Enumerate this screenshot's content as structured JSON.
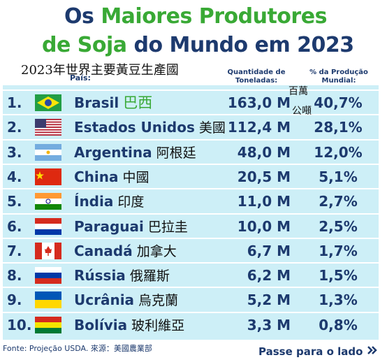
{
  "header": {
    "title_line1": [
      "Os",
      "Maiores Produtores"
    ],
    "title_line2": [
      "de Soja",
      "do Mundo em 2023"
    ],
    "subtitle_zh": "2023年世界主要黃豆生產國"
  },
  "table": {
    "columns": [
      "País:",
      "Quantidade de Toneladas:",
      "% da Produção Mundial:"
    ],
    "unit_zh": [
      "百萬",
      "公噸"
    ],
    "rows": [
      [
        "1.",
        "Brasil",
        "巴西",
        "163,0 M",
        "40,7%"
      ],
      [
        "2.",
        "Estados Unidos",
        "美國",
        "112,4 M",
        "28,1%"
      ],
      [
        "3.",
        "Argentina",
        "阿根廷",
        "48,0 M",
        "12,0%"
      ],
      [
        "4.",
        "China",
        "中國",
        "20,5 M",
        "5,1%"
      ],
      [
        "5.",
        "Índia",
        "印度",
        "11,0 M",
        "2,7%"
      ],
      [
        "6.",
        "Paraguai",
        "巴拉圭",
        "10,0 M",
        "2,5%"
      ],
      [
        "7.",
        "Canadá",
        "加拿大",
        "6,7 M",
        "1,7%"
      ],
      [
        "8.",
        "Rússia",
        "俄羅斯",
        "6,2 M",
        "1,5%"
      ],
      [
        "9.",
        "Ucrânia",
        "烏克蘭",
        "5,2 M",
        "1,3%"
      ],
      [
        "10.",
        "Bolívia",
        "玻利維亞",
        "3,3 M",
        "0,8%"
      ]
    ]
  },
  "footer": {
    "source": "Fonte: Projeção USDA. 來源：美國農業部",
    "next": "Passe para o lado"
  }
}
